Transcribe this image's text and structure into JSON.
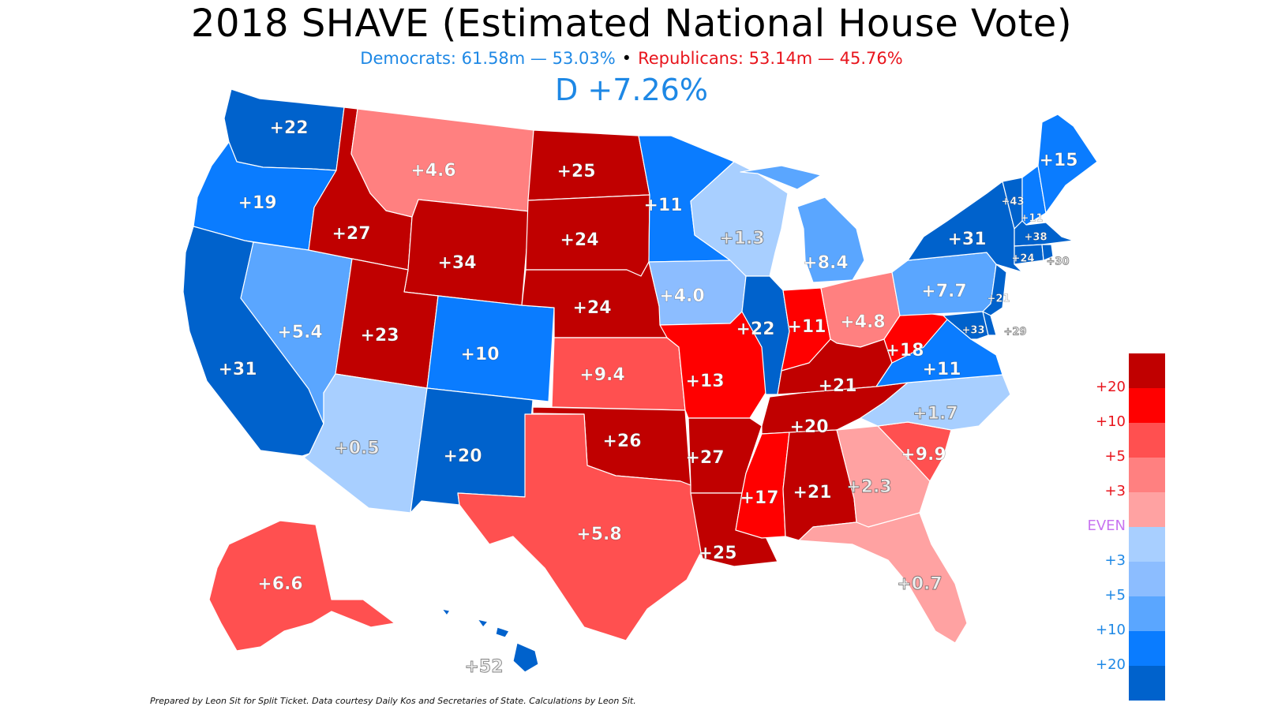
{
  "title": "2018 SHAVE (Estimated National House Vote)",
  "subtitle": {
    "democrats": "Democrats: 61.58m — 53.03%",
    "separator": "•",
    "republicans": "Republicans: 53.14m — 45.76%"
  },
  "margin": "D +7.26%",
  "footnote": "Prepared by Leon Sit for Split Ticket. Data courtesy Daily Kos and Secretaries of State. Calculations by Leon Sit.",
  "colors": {
    "R20plus": "#c00000",
    "R10": "#ff0000",
    "R5": "#ff5050",
    "R3": "#ff8080",
    "R0": "#ffa2a2",
    "D0": "#a8cfff",
    "D3": "#8cbdff",
    "D5": "#5aa6ff",
    "D10": "#0a7cff",
    "D20plus": "#0062cc"
  },
  "legend": [
    {
      "color": "#c00000",
      "label": "+20",
      "label_color": "#e8141c"
    },
    {
      "color": "#ff0000",
      "label": "+10",
      "label_color": "#e8141c"
    },
    {
      "color": "#ff5050",
      "label": "+5",
      "label_color": "#e8141c"
    },
    {
      "color": "#ff8080",
      "label": "+3",
      "label_color": "#e8141c"
    },
    {
      "color": "#ffa2a2",
      "label": "EVEN",
      "label_color": "#c874f0"
    },
    {
      "color": "#a8cfff",
      "label": "+3",
      "label_color": "#1e88e5"
    },
    {
      "color": "#8cbdff",
      "label": "+5",
      "label_color": "#1e88e5"
    },
    {
      "color": "#5aa6ff",
      "label": "+10",
      "label_color": "#1e88e5"
    },
    {
      "color": "#0a7cff",
      "label": "+20",
      "label_color": "#1e88e5"
    },
    {
      "color": "#0062cc",
      "label": "",
      "label_color": "#1e88e5"
    }
  ],
  "states": [
    {
      "id": "WA",
      "party": "D",
      "margin": 22,
      "label": "+22",
      "color": "#0062cc"
    },
    {
      "id": "OR",
      "party": "D",
      "margin": 19,
      "label": "+19",
      "color": "#0a7cff"
    },
    {
      "id": "CA",
      "party": "D",
      "margin": 31,
      "label": "+31",
      "color": "#0062cc"
    },
    {
      "id": "NV",
      "party": "D",
      "margin": 5.4,
      "label": "+5.4",
      "color": "#5aa6ff"
    },
    {
      "id": "ID",
      "party": "R",
      "margin": 27,
      "label": "+27",
      "color": "#c00000"
    },
    {
      "id": "MT",
      "party": "R",
      "margin": 4.6,
      "label": "+4.6",
      "color": "#ff8080"
    },
    {
      "id": "WY",
      "party": "R",
      "margin": 34,
      "label": "+34",
      "color": "#c00000"
    },
    {
      "id": "UT",
      "party": "R",
      "margin": 23,
      "label": "+23",
      "color": "#c00000"
    },
    {
      "id": "AZ",
      "party": "D",
      "margin": 0.5,
      "label": "+0.5",
      "color": "#a8cfff"
    },
    {
      "id": "CO",
      "party": "D",
      "margin": 10,
      "label": "+10",
      "color": "#0a7cff"
    },
    {
      "id": "NM",
      "party": "D",
      "margin": 20,
      "label": "+20",
      "color": "#0062cc"
    },
    {
      "id": "ND",
      "party": "R",
      "margin": 25,
      "label": "+25",
      "color": "#c00000"
    },
    {
      "id": "SD",
      "party": "R",
      "margin": 24,
      "label": "+24",
      "color": "#c00000"
    },
    {
      "id": "NE",
      "party": "R",
      "margin": 24,
      "label": "+24",
      "color": "#c00000"
    },
    {
      "id": "KS",
      "party": "R",
      "margin": 9.4,
      "label": "+9.4",
      "color": "#ff5050"
    },
    {
      "id": "OK",
      "party": "R",
      "margin": 26,
      "label": "+26",
      "color": "#c00000"
    },
    {
      "id": "TX",
      "party": "R",
      "margin": 5.8,
      "label": "+5.8",
      "color": "#ff5050"
    },
    {
      "id": "MN",
      "party": "D",
      "margin": 11,
      "label": "+11",
      "color": "#0a7cff"
    },
    {
      "id": "IA",
      "party": "D",
      "margin": 4.0,
      "label": "+4.0",
      "color": "#8cbdff"
    },
    {
      "id": "MO",
      "party": "R",
      "margin": 13,
      "label": "+13",
      "color": "#ff0000"
    },
    {
      "id": "AR",
      "party": "R",
      "margin": 27,
      "label": "+27",
      "color": "#c00000"
    },
    {
      "id": "LA",
      "party": "R",
      "margin": 25,
      "label": "+25",
      "color": "#c00000"
    },
    {
      "id": "WI",
      "party": "D",
      "margin": 1.3,
      "label": "+1.3",
      "color": "#a8cfff"
    },
    {
      "id": "IL",
      "party": "D",
      "margin": 22,
      "label": "+22",
      "color": "#0062cc"
    },
    {
      "id": "MI",
      "party": "D",
      "margin": 8.4,
      "label": "+8.4",
      "color": "#5aa6ff"
    },
    {
      "id": "IN",
      "party": "R",
      "margin": 11,
      "label": "+11",
      "color": "#ff0000"
    },
    {
      "id": "OH",
      "party": "R",
      "margin": 4.8,
      "label": "+4.8",
      "color": "#ff8080"
    },
    {
      "id": "KY",
      "party": "R",
      "margin": 21,
      "label": "+21",
      "color": "#c00000"
    },
    {
      "id": "TN",
      "party": "R",
      "margin": 20,
      "label": "+20",
      "color": "#c00000"
    },
    {
      "id": "MS",
      "party": "R",
      "margin": 17,
      "label": "+17",
      "color": "#ff0000"
    },
    {
      "id": "AL",
      "party": "R",
      "margin": 21,
      "label": "+21",
      "color": "#c00000"
    },
    {
      "id": "GA",
      "party": "R",
      "margin": 2.3,
      "label": "+2.3",
      "color": "#ffa2a2"
    },
    {
      "id": "FL",
      "party": "R",
      "margin": 0.7,
      "label": "+0.7",
      "color": "#ffa2a2"
    },
    {
      "id": "SC",
      "party": "R",
      "margin": 9.9,
      "label": "+9.9",
      "color": "#ff5050"
    },
    {
      "id": "NC",
      "party": "D",
      "margin": 1.7,
      "label": "+1.7",
      "color": "#a8cfff"
    },
    {
      "id": "VA",
      "party": "D",
      "margin": 11,
      "label": "+11",
      "color": "#0a7cff"
    },
    {
      "id": "WV",
      "party": "R",
      "margin": 18,
      "label": "+18",
      "color": "#ff0000"
    },
    {
      "id": "PA",
      "party": "D",
      "margin": 7.7,
      "label": "+7.7",
      "color": "#5aa6ff"
    },
    {
      "id": "NY",
      "party": "D",
      "margin": 31,
      "label": "+31",
      "color": "#0062cc"
    },
    {
      "id": "NJ",
      "party": "D",
      "margin": 21,
      "label": "+21",
      "color": "#0062cc"
    },
    {
      "id": "MD",
      "party": "D",
      "margin": 33,
      "label": "+33",
      "color": "#0062cc"
    },
    {
      "id": "DE",
      "party": "D",
      "margin": 29,
      "label": "+29",
      "color": "#0062cc"
    },
    {
      "id": "VT",
      "party": "D",
      "margin": 43,
      "label": "+43",
      "color": "#0062cc"
    },
    {
      "id": "NH",
      "party": "D",
      "margin": 11,
      "label": "+11",
      "color": "#0a7cff"
    },
    {
      "id": "MA",
      "party": "D",
      "margin": 38,
      "label": "+38",
      "color": "#0062cc"
    },
    {
      "id": "CT",
      "party": "D",
      "margin": 24,
      "label": "+24",
      "color": "#0062cc"
    },
    {
      "id": "RI",
      "party": "D",
      "margin": 30,
      "label": "+30",
      "color": "#0062cc"
    },
    {
      "id": "ME",
      "party": "D",
      "margin": 15,
      "label": "+15",
      "color": "#0a7cff"
    },
    {
      "id": "AK",
      "party": "R",
      "margin": 6.6,
      "label": "+6.6",
      "color": "#ff5050"
    },
    {
      "id": "HI",
      "party": "D",
      "margin": 52,
      "label": "+52",
      "color": "#0062cc"
    }
  ]
}
